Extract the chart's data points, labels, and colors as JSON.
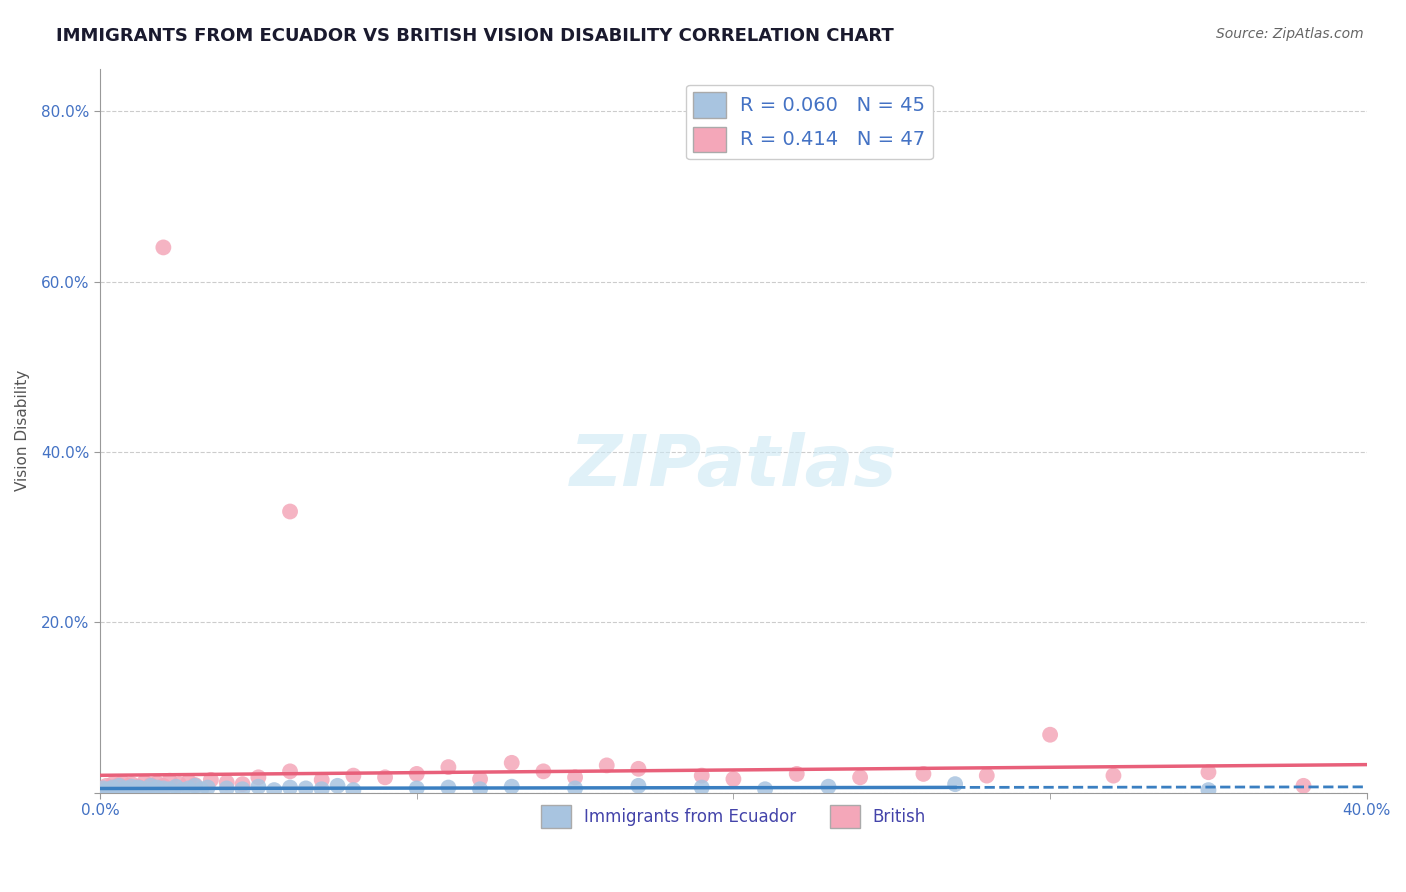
{
  "title": "IMMIGRANTS FROM ECUADOR VS BRITISH VISION DISABILITY CORRELATION CHART",
  "source": "Source: ZipAtlas.com",
  "ylabel": "Vision Disability",
  "xlim": [
    0.0,
    0.4
  ],
  "ylim": [
    0.0,
    0.85
  ],
  "ytick_vals": [
    0.0,
    0.2,
    0.4,
    0.6,
    0.8
  ],
  "ytick_labels": [
    "",
    "20.0%",
    "40.0%",
    "60.0%",
    "80.0%"
  ],
  "legend_r1": "R = 0.060",
  "legend_n1": "N = 45",
  "legend_r2": "R = 0.414",
  "legend_n2": "N = 47",
  "color_ecuador": "#a8c4e0",
  "color_british": "#f4a7b9",
  "trendline_color_ecuador": "#3a7fc1",
  "trendline_color_british": "#e8607a",
  "grid_color": "#cccccc",
  "ecuador_points": [
    [
      0.001,
      0.005
    ],
    [
      0.002,
      0.003
    ],
    [
      0.003,
      0.004
    ],
    [
      0.004,
      0.006
    ],
    [
      0.005,
      0.002
    ],
    [
      0.006,
      0.008
    ],
    [
      0.007,
      0.003
    ],
    [
      0.008,
      0.005
    ],
    [
      0.009,
      0.004
    ],
    [
      0.01,
      0.007
    ],
    [
      0.011,
      0.003
    ],
    [
      0.012,
      0.006
    ],
    [
      0.013,
      0.005
    ],
    [
      0.015,
      0.004
    ],
    [
      0.016,
      0.008
    ],
    [
      0.017,
      0.003
    ],
    [
      0.018,
      0.006
    ],
    [
      0.02,
      0.005
    ],
    [
      0.022,
      0.004
    ],
    [
      0.024,
      0.007
    ],
    [
      0.026,
      0.003
    ],
    [
      0.028,
      0.005
    ],
    [
      0.03,
      0.008
    ],
    [
      0.032,
      0.004
    ],
    [
      0.034,
      0.006
    ],
    [
      0.04,
      0.005
    ],
    [
      0.045,
      0.004
    ],
    [
      0.05,
      0.007
    ],
    [
      0.055,
      0.003
    ],
    [
      0.06,
      0.006
    ],
    [
      0.065,
      0.005
    ],
    [
      0.07,
      0.004
    ],
    [
      0.075,
      0.008
    ],
    [
      0.08,
      0.003
    ],
    [
      0.1,
      0.005
    ],
    [
      0.11,
      0.006
    ],
    [
      0.12,
      0.004
    ],
    [
      0.13,
      0.007
    ],
    [
      0.15,
      0.005
    ],
    [
      0.17,
      0.008
    ],
    [
      0.19,
      0.006
    ],
    [
      0.21,
      0.004
    ],
    [
      0.23,
      0.007
    ],
    [
      0.27,
      0.01
    ],
    [
      0.35,
      0.003
    ]
  ],
  "british_points": [
    [
      0.001,
      0.005
    ],
    [
      0.002,
      0.008
    ],
    [
      0.003,
      0.006
    ],
    [
      0.004,
      0.01
    ],
    [
      0.005,
      0.007
    ],
    [
      0.006,
      0.009
    ],
    [
      0.007,
      0.012
    ],
    [
      0.008,
      0.006
    ],
    [
      0.009,
      0.008
    ],
    [
      0.01,
      0.01
    ],
    [
      0.012,
      0.007
    ],
    [
      0.014,
      0.012
    ],
    [
      0.016,
      0.009
    ],
    [
      0.018,
      0.011
    ],
    [
      0.02,
      0.008
    ],
    [
      0.022,
      0.014
    ],
    [
      0.025,
      0.01
    ],
    [
      0.028,
      0.013
    ],
    [
      0.03,
      0.009
    ],
    [
      0.035,
      0.015
    ],
    [
      0.04,
      0.012
    ],
    [
      0.045,
      0.01
    ],
    [
      0.05,
      0.018
    ],
    [
      0.06,
      0.025
    ],
    [
      0.07,
      0.015
    ],
    [
      0.08,
      0.02
    ],
    [
      0.09,
      0.018
    ],
    [
      0.1,
      0.022
    ],
    [
      0.11,
      0.03
    ],
    [
      0.12,
      0.016
    ],
    [
      0.13,
      0.035
    ],
    [
      0.14,
      0.025
    ],
    [
      0.15,
      0.018
    ],
    [
      0.16,
      0.032
    ],
    [
      0.17,
      0.028
    ],
    [
      0.19,
      0.02
    ],
    [
      0.2,
      0.016
    ],
    [
      0.22,
      0.022
    ],
    [
      0.24,
      0.018
    ],
    [
      0.26,
      0.022
    ],
    [
      0.28,
      0.02
    ],
    [
      0.3,
      0.068
    ],
    [
      0.32,
      0.02
    ],
    [
      0.35,
      0.024
    ],
    [
      0.38,
      0.008
    ],
    [
      0.02,
      0.64
    ],
    [
      0.06,
      0.33
    ]
  ],
  "background_color": "#ffffff",
  "title_fontsize": 13,
  "axis_label_fontsize": 11,
  "tick_fontsize": 11,
  "tick_color": "#4472c4",
  "axis_color": "#999999"
}
